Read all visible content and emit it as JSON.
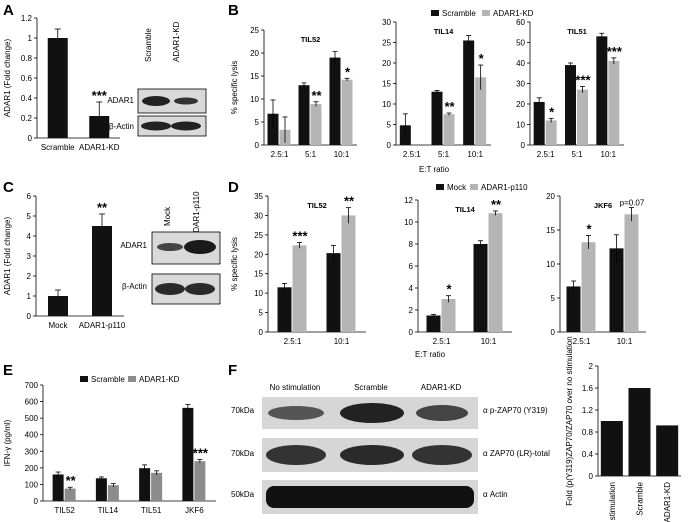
{
  "panel_labels": {
    "A": "A",
    "B": "B",
    "C": "C",
    "D": "D",
    "E": "E",
    "F": "F"
  },
  "legends": {
    "B": [
      "Scramble",
      "ADAR1-KD"
    ],
    "D": [
      "Mock",
      "ADAR1-p110"
    ],
    "E": [
      "Scramble",
      "ADAR1-KD"
    ]
  },
  "shared_xlabels": {
    "B": "E:T ratio",
    "D": "E:T ratio"
  },
  "blots": {
    "A": {
      "lanes": [
        "Scramble",
        "ADAR1-KD"
      ],
      "rows": [
        "ADAR1",
        "β-Actin"
      ]
    },
    "C": {
      "lanes": [
        "Mock",
        "ADAR1-p110"
      ],
      "rows": [
        "ADAR1",
        "β-Actin"
      ]
    },
    "F": {
      "lanes": [
        "No stimulation",
        "Scramble",
        "ADAR1-KD"
      ],
      "rows": [
        {
          "mw": "70kDa",
          "label": "α p-ZAP70 (Y319)"
        },
        {
          "mw": "70kDa",
          "label": "α ZAP70 (LR)-total"
        },
        {
          "mw": "50kDa",
          "label": "α Actin"
        }
      ]
    }
  },
  "colors": {
    "black": "#111111",
    "gray": "#b5b5b5",
    "dark_gray": "#8c8c8c",
    "blot_band": "#222222",
    "blot_bg": "#d9d9d9"
  },
  "chart_data": [
    {
      "id": "A",
      "type": "bar",
      "title": "",
      "xlabel": "",
      "ylabel": "ADAR1 (Fold change)",
      "categories": [
        "Scramble",
        "ADAR1-KD"
      ],
      "values": [
        1.0,
        0.22
      ],
      "errors": [
        0.09,
        0.14
      ],
      "colors": [
        "#111111",
        "#111111"
      ],
      "ylim": [
        0,
        1.2
      ],
      "yticks": [
        0,
        0.2,
        0.4,
        0.6,
        0.8,
        1,
        1.2
      ],
      "annotations": [
        {
          "category": 1,
          "text": "***"
        }
      ]
    },
    {
      "id": "B1",
      "type": "bar",
      "title": "TIL52",
      "xlabel": "",
      "ylabel": "% specific lysis",
      "categories": [
        "2.5:1",
        "5:1",
        "10:1"
      ],
      "series": [
        {
          "name": "Scramble",
          "values": [
            6.8,
            13.0,
            19.0
          ],
          "errors": [
            3.0,
            0.5,
            1.3
          ]
        },
        {
          "name": "ADAR1-KD",
          "values": [
            3.3,
            8.9,
            14.2
          ],
          "errors": [
            2.8,
            0.5,
            0.3
          ]
        }
      ],
      "ylim": [
        0,
        25
      ],
      "yticks": [
        0,
        5,
        10,
        15,
        20,
        25
      ],
      "annotations": [
        {
          "category": 1,
          "text": "**"
        },
        {
          "category": 2,
          "text": "*"
        }
      ]
    },
    {
      "id": "B2",
      "type": "bar",
      "title": "TIL14",
      "xlabel": "",
      "ylabel": "",
      "categories": [
        "2.5:1",
        "5:1",
        "10:1"
      ],
      "series": [
        {
          "name": "Scramble",
          "values": [
            4.8,
            13.0,
            25.5
          ],
          "errors": [
            2.8,
            0.3,
            1.2
          ]
        },
        {
          "name": "ADAR1-KD",
          "values": [
            0,
            7.5,
            16.5
          ],
          "errors": [
            0,
            0.3,
            3.0
          ]
        }
      ],
      "ylim": [
        0,
        30
      ],
      "yticks": [
        0,
        5,
        10,
        15,
        20,
        25,
        30
      ],
      "annotations": [
        {
          "category": 1,
          "text": "**"
        },
        {
          "category": 2,
          "text": "*"
        }
      ]
    },
    {
      "id": "B3",
      "type": "bar",
      "title": "TIL51",
      "xlabel": "",
      "ylabel": "",
      "categories": [
        "2.5:1",
        "5:1",
        "10:1"
      ],
      "series": [
        {
          "name": "Scramble",
          "values": [
            21.0,
            39.0,
            53.0
          ],
          "errors": [
            2.0,
            1.0,
            1.5
          ]
        },
        {
          "name": "ADAR1-KD",
          "values": [
            12.0,
            27.0,
            41.0
          ],
          "errors": [
            1.0,
            1.5,
            1.5
          ]
        }
      ],
      "ylim": [
        0,
        60
      ],
      "yticks": [
        0,
        10,
        20,
        30,
        40,
        50,
        60
      ],
      "annotations": [
        {
          "category": 0,
          "text": "*"
        },
        {
          "category": 1,
          "text": "***"
        },
        {
          "category": 2,
          "text": "***"
        }
      ]
    },
    {
      "id": "C",
      "type": "bar",
      "title": "",
      "xlabel": "",
      "ylabel": "ADAR1 (Fold change)",
      "categories": [
        "Mock",
        "ADAR1-p110"
      ],
      "values": [
        1.0,
        4.5
      ],
      "errors": [
        0.3,
        0.6
      ],
      "colors": [
        "#111111",
        "#111111"
      ],
      "ylim": [
        0,
        6
      ],
      "yticks": [
        0,
        1,
        2,
        3,
        4,
        5,
        6
      ],
      "annotations": [
        {
          "category": 1,
          "text": "**"
        }
      ]
    },
    {
      "id": "D1",
      "type": "bar",
      "title": "TIL52",
      "xlabel": "",
      "ylabel": "% specific lysis",
      "categories": [
        "2.5:1",
        "10:1"
      ],
      "series": [
        {
          "name": "Mock",
          "values": [
            11.5,
            20.3
          ],
          "errors": [
            1.0,
            2.0
          ]
        },
        {
          "name": "ADAR1-p110",
          "values": [
            22.3,
            30.0
          ],
          "errors": [
            0.7,
            2.0
          ]
        }
      ],
      "ylim": [
        0,
        35
      ],
      "yticks": [
        0,
        5,
        10,
        15,
        20,
        25,
        30,
        35
      ],
      "annotations": [
        {
          "category": 0,
          "text": "***"
        },
        {
          "category": 1,
          "text": "**"
        }
      ]
    },
    {
      "id": "D2",
      "type": "bar",
      "title": "TIL14",
      "xlabel": "",
      "ylabel": "",
      "categories": [
        "2.5:1",
        "10:1"
      ],
      "series": [
        {
          "name": "Mock",
          "values": [
            1.5,
            8.0
          ],
          "errors": [
            0.1,
            0.3
          ]
        },
        {
          "name": "ADAR1-p110",
          "values": [
            3.0,
            10.8
          ],
          "errors": [
            0.3,
            0.2
          ]
        }
      ],
      "ylim": [
        0,
        12
      ],
      "yticks": [
        0,
        2,
        4,
        6,
        8,
        10,
        12
      ],
      "annotations": [
        {
          "category": 0,
          "text": "*"
        },
        {
          "category": 1,
          "text": "**"
        }
      ]
    },
    {
      "id": "D3",
      "type": "bar",
      "title": "JKF6",
      "xlabel": "",
      "ylabel": "",
      "categories": [
        "2.5:1",
        "10:1"
      ],
      "series": [
        {
          "name": "Mock",
          "values": [
            6.7,
            12.3
          ],
          "errors": [
            0.8,
            2.0
          ]
        },
        {
          "name": "ADAR1-p110",
          "values": [
            13.2,
            17.3
          ],
          "errors": [
            1.0,
            1.0
          ]
        }
      ],
      "ylim": [
        0,
        20
      ],
      "yticks": [
        0,
        5,
        10,
        15,
        20
      ],
      "annotations": [
        {
          "category": 0,
          "text": "*"
        },
        {
          "category": 1,
          "text": "p=0.07"
        }
      ]
    },
    {
      "id": "E",
      "type": "bar",
      "title": "",
      "xlabel": "",
      "ylabel": "IFN-γ (pg/ml)",
      "categories": [
        "TIL52",
        "TIL14",
        "TIL51",
        "JKF6"
      ],
      "series": [
        {
          "name": "Scramble",
          "values": [
            160,
            137,
            198,
            562
          ],
          "errors": [
            15,
            8,
            20,
            20
          ]
        },
        {
          "name": "ADAR1-KD",
          "values": [
            75,
            95,
            170,
            240
          ],
          "errors": [
            8,
            10,
            12,
            10
          ]
        }
      ],
      "ylim": [
        0,
        700
      ],
      "yticks": [
        0,
        100,
        200,
        300,
        400,
        500,
        600,
        700
      ],
      "annotations": [
        {
          "category": 0,
          "text": "**"
        },
        {
          "category": 3,
          "text": "***"
        }
      ]
    },
    {
      "id": "F",
      "type": "bar",
      "title": "",
      "xlabel": "",
      "ylabel": "Fold (p(Y319)ZAP70/ZAP70 over no stimulation",
      "categories": [
        "No stimulation",
        "Scramble",
        "ADAR1-KD"
      ],
      "values": [
        1.0,
        1.6,
        0.92
      ],
      "errors": [
        0,
        0,
        0
      ],
      "colors": [
        "#111111",
        "#111111",
        "#111111"
      ],
      "ylim": [
        0,
        2
      ],
      "yticks": [
        0,
        0.4,
        0.8,
        1.2,
        1.6,
        2
      ],
      "annotations": []
    }
  ]
}
